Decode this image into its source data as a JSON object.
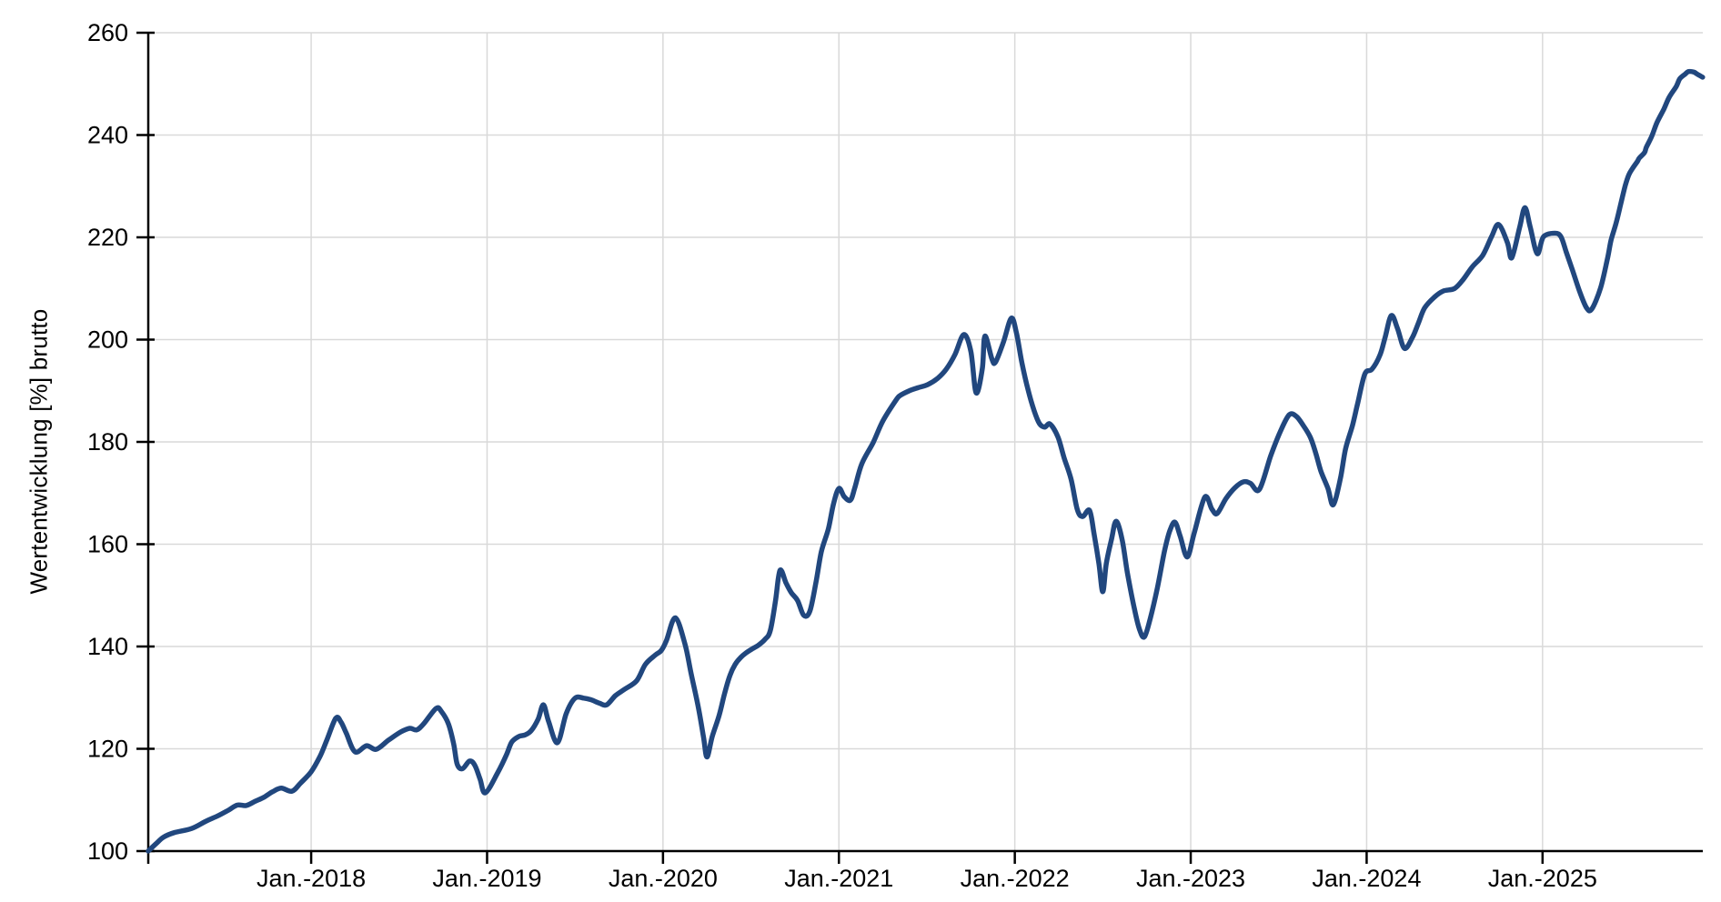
{
  "chart_data": {
    "type": "line",
    "title": "",
    "xlabel": "",
    "ylabel": "Wertentwicklung [%] brutto",
    "grid": true,
    "legend_position": "none",
    "colors": {
      "line": "#21477E",
      "grid": "#D9D9D9",
      "axis": "#000000",
      "text": "#000000",
      "background": "#FFFFFF"
    },
    "x_axis": {
      "unit": "decimal_year",
      "min": 2017.074,
      "max": 2025.911,
      "ticks": [
        {
          "t": 2018,
          "label": "Jan.-2018"
        },
        {
          "t": 2019,
          "label": "Jan.-2019"
        },
        {
          "t": 2020,
          "label": "Jan.-2020"
        },
        {
          "t": 2021,
          "label": "Jan.-2021"
        },
        {
          "t": 2022,
          "label": "Jan.-2022"
        },
        {
          "t": 2023,
          "label": "Jan.-2023"
        },
        {
          "t": 2024,
          "label": "Jan.-2024"
        },
        {
          "t": 2025,
          "label": "Jan.-2025"
        }
      ]
    },
    "y_axis": {
      "min": 100,
      "max": 260,
      "tick_step": 20,
      "ticks": [
        100,
        120,
        140,
        160,
        180,
        200,
        220,
        240,
        260
      ]
    },
    "series": [
      {
        "name": "Wertentwicklung [%] brutto",
        "color": "#21477E",
        "points": [
          [
            2017.074,
            100.0
          ],
          [
            2017.12,
            101.5
          ],
          [
            2017.16,
            102.7
          ],
          [
            2017.22,
            103.6
          ],
          [
            2017.32,
            104.4
          ],
          [
            2017.4,
            105.8
          ],
          [
            2017.47,
            106.9
          ],
          [
            2017.53,
            108.0
          ],
          [
            2017.58,
            109.0
          ],
          [
            2017.63,
            108.9
          ],
          [
            2017.68,
            109.7
          ],
          [
            2017.73,
            110.5
          ],
          [
            2017.78,
            111.6
          ],
          [
            2017.83,
            112.3
          ],
          [
            2017.89,
            111.7
          ],
          [
            2017.94,
            113.3
          ],
          [
            2018.0,
            115.5
          ],
          [
            2018.05,
            118.5
          ],
          [
            2018.09,
            121.8
          ],
          [
            2018.14,
            126.0
          ],
          [
            2018.17,
            125.2
          ],
          [
            2018.2,
            123.0
          ],
          [
            2018.25,
            119.4
          ],
          [
            2018.315,
            120.6
          ],
          [
            2018.37,
            119.9
          ],
          [
            2018.44,
            121.7
          ],
          [
            2018.51,
            123.3
          ],
          [
            2018.56,
            124.0
          ],
          [
            2018.6,
            123.7
          ],
          [
            2018.64,
            124.9
          ],
          [
            2018.71,
            127.9
          ],
          [
            2018.74,
            127.3
          ],
          [
            2018.78,
            124.9
          ],
          [
            2018.81,
            121.0
          ],
          [
            2018.83,
            117.0
          ],
          [
            2018.86,
            116.1
          ],
          [
            2018.9,
            117.6
          ],
          [
            2018.93,
            116.8
          ],
          [
            2018.96,
            114.1
          ],
          [
            2018.99,
            111.4
          ],
          [
            2019.06,
            115.3
          ],
          [
            2019.11,
            118.8
          ],
          [
            2019.14,
            121.3
          ],
          [
            2019.18,
            122.4
          ],
          [
            2019.215,
            122.7
          ],
          [
            2019.25,
            123.5
          ],
          [
            2019.29,
            125.8
          ],
          [
            2019.32,
            128.6
          ],
          [
            2019.35,
            125.3
          ],
          [
            2019.4,
            121.2
          ],
          [
            2019.45,
            126.9
          ],
          [
            2019.5,
            129.9
          ],
          [
            2019.55,
            129.9
          ],
          [
            2019.59,
            129.6
          ],
          [
            2019.64,
            128.9
          ],
          [
            2019.68,
            128.6
          ],
          [
            2019.73,
            130.4
          ],
          [
            2019.78,
            131.6
          ],
          [
            2019.85,
            133.3
          ],
          [
            2019.9,
            136.5
          ],
          [
            2019.955,
            138.3
          ],
          [
            2019.99,
            139.2
          ],
          [
            2020.02,
            141.2
          ],
          [
            2020.07,
            145.6
          ],
          [
            2020.125,
            140.5
          ],
          [
            2020.16,
            134.7
          ],
          [
            2020.2,
            128.3
          ],
          [
            2020.23,
            122.4
          ],
          [
            2020.25,
            118.4
          ],
          [
            2020.28,
            122.4
          ],
          [
            2020.32,
            126.6
          ],
          [
            2020.35,
            130.8
          ],
          [
            2020.38,
            134.3
          ],
          [
            2020.41,
            136.5
          ],
          [
            2020.44,
            137.8
          ],
          [
            2020.47,
            138.7
          ],
          [
            2020.51,
            139.6
          ],
          [
            2020.54,
            140.2
          ],
          [
            2020.58,
            141.4
          ],
          [
            2020.61,
            143.1
          ],
          [
            2020.64,
            149.0
          ],
          [
            2020.665,
            154.9
          ],
          [
            2020.7,
            152.4
          ],
          [
            2020.73,
            150.5
          ],
          [
            2020.765,
            149.0
          ],
          [
            2020.8,
            146.1
          ],
          [
            2020.835,
            146.9
          ],
          [
            2020.87,
            152.6
          ],
          [
            2020.9,
            158.5
          ],
          [
            2020.94,
            163.0
          ],
          [
            2020.97,
            168.0
          ],
          [
            2021.0,
            170.9
          ],
          [
            2021.03,
            169.3
          ],
          [
            2021.065,
            168.6
          ],
          [
            2021.09,
            171.0
          ],
          [
            2021.13,
            175.7
          ],
          [
            2021.195,
            179.9
          ],
          [
            2021.25,
            184.1
          ],
          [
            2021.325,
            188.2
          ],
          [
            2021.35,
            189.1
          ],
          [
            2021.4,
            190.0
          ],
          [
            2021.45,
            190.6
          ],
          [
            2021.505,
            191.2
          ],
          [
            2021.56,
            192.4
          ],
          [
            2021.61,
            194.2
          ],
          [
            2021.66,
            197.1
          ],
          [
            2021.71,
            201.0
          ],
          [
            2021.75,
            197.7
          ],
          [
            2021.78,
            189.6
          ],
          [
            2021.815,
            194.3
          ],
          [
            2021.83,
            200.7
          ],
          [
            2021.87,
            196.2
          ],
          [
            2021.89,
            195.6
          ],
          [
            2021.935,
            199.5
          ],
          [
            2021.98,
            204.2
          ],
          [
            2022.01,
            201.2
          ],
          [
            2022.04,
            195.5
          ],
          [
            2022.075,
            190.2
          ],
          [
            2022.11,
            186.1
          ],
          [
            2022.14,
            183.6
          ],
          [
            2022.17,
            182.9
          ],
          [
            2022.2,
            183.5
          ],
          [
            2022.245,
            181.0
          ],
          [
            2022.28,
            176.9
          ],
          [
            2022.32,
            172.7
          ],
          [
            2022.355,
            166.8
          ],
          [
            2022.385,
            165.4
          ],
          [
            2022.425,
            166.6
          ],
          [
            2022.45,
            162.1
          ],
          [
            2022.478,
            156.2
          ],
          [
            2022.5,
            150.7
          ],
          [
            2022.52,
            156.2
          ],
          [
            2022.55,
            161.0
          ],
          [
            2022.576,
            164.5
          ],
          [
            2022.61,
            160.9
          ],
          [
            2022.64,
            154.4
          ],
          [
            2022.68,
            147.3
          ],
          [
            2022.71,
            143.2
          ],
          [
            2022.737,
            141.9
          ],
          [
            2022.77,
            145.5
          ],
          [
            2022.81,
            151.4
          ],
          [
            2022.85,
            158.5
          ],
          [
            2022.88,
            162.5
          ],
          [
            2022.91,
            164.3
          ],
          [
            2022.94,
            161.6
          ],
          [
            2022.98,
            157.5
          ],
          [
            2023.02,
            162.2
          ],
          [
            2023.08,
            169.2
          ],
          [
            2023.12,
            166.9
          ],
          [
            2023.15,
            166.0
          ],
          [
            2023.2,
            168.9
          ],
          [
            2023.25,
            171.0
          ],
          [
            2023.3,
            172.2
          ],
          [
            2023.34,
            171.9
          ],
          [
            2023.39,
            170.7
          ],
          [
            2023.455,
            177.3
          ],
          [
            2023.51,
            182.1
          ],
          [
            2023.56,
            185.3
          ],
          [
            2023.6,
            185.0
          ],
          [
            2023.64,
            183.2
          ],
          [
            2023.68,
            180.9
          ],
          [
            2023.71,
            177.9
          ],
          [
            2023.74,
            174.3
          ],
          [
            2023.78,
            170.9
          ],
          [
            2023.81,
            167.7
          ],
          [
            2023.85,
            172.7
          ],
          [
            2023.88,
            178.6
          ],
          [
            2023.92,
            183.3
          ],
          [
            2023.95,
            187.7
          ],
          [
            2023.99,
            193.3
          ],
          [
            2024.03,
            194.2
          ],
          [
            2024.075,
            196.9
          ],
          [
            2024.105,
            200.4
          ],
          [
            2024.14,
            204.7
          ],
          [
            2024.175,
            202.2
          ],
          [
            2024.215,
            198.3
          ],
          [
            2024.26,
            200.4
          ],
          [
            2024.295,
            203.3
          ],
          [
            2024.33,
            206.2
          ],
          [
            2024.385,
            208.3
          ],
          [
            2024.435,
            209.5
          ],
          [
            2024.5,
            210.0
          ],
          [
            2024.55,
            211.8
          ],
          [
            2024.6,
            214.2
          ],
          [
            2024.66,
            216.5
          ],
          [
            2024.71,
            220.1
          ],
          [
            2024.75,
            222.5
          ],
          [
            2024.8,
            219.0
          ],
          [
            2024.825,
            216.0
          ],
          [
            2024.87,
            222.0
          ],
          [
            2024.9,
            225.8
          ],
          [
            2024.93,
            222.0
          ],
          [
            2024.97,
            216.8
          ],
          [
            2025.005,
            220.1
          ],
          [
            2025.07,
            220.8
          ],
          [
            2025.105,
            220.1
          ],
          [
            2025.135,
            217.1
          ],
          [
            2025.17,
            213.6
          ],
          [
            2025.21,
            209.5
          ],
          [
            2025.25,
            206.2
          ],
          [
            2025.28,
            206.0
          ],
          [
            2025.33,
            210.1
          ],
          [
            2025.37,
            216.0
          ],
          [
            2025.39,
            219.5
          ],
          [
            2025.42,
            223.0
          ],
          [
            2025.445,
            226.6
          ],
          [
            2025.47,
            230.1
          ],
          [
            2025.49,
            232.2
          ],
          [
            2025.51,
            233.4
          ],
          [
            2025.54,
            234.9
          ],
          [
            2025.55,
            235.5
          ],
          [
            2025.58,
            236.6
          ],
          [
            2025.59,
            237.6
          ],
          [
            2025.62,
            239.7
          ],
          [
            2025.65,
            242.4
          ],
          [
            2025.69,
            245.1
          ],
          [
            2025.72,
            247.4
          ],
          [
            2025.76,
            249.5
          ],
          [
            2025.78,
            251.0
          ],
          [
            2025.81,
            251.9
          ],
          [
            2025.83,
            252.4
          ],
          [
            2025.86,
            252.3
          ],
          [
            2025.88,
            251.9
          ],
          [
            2025.91,
            251.3
          ]
        ]
      }
    ]
  }
}
